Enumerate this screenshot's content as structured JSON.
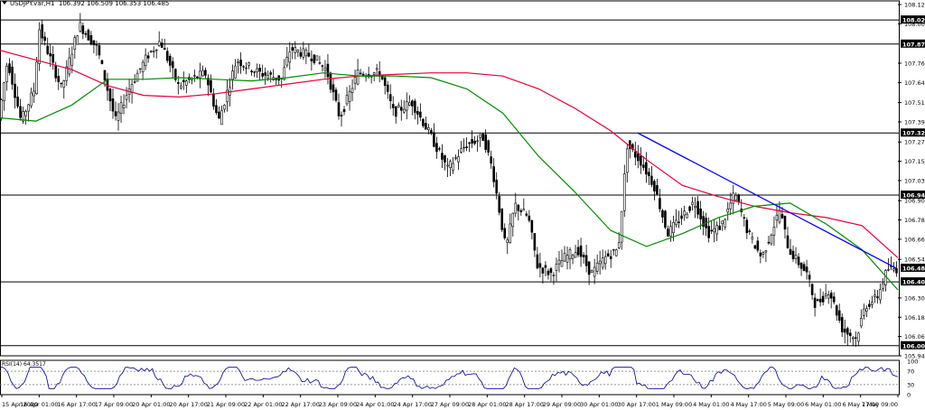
{
  "header": {
    "symbol": "USDJPY.var,H1",
    "ohlc": "106.392 106.509 106.353 106.485"
  },
  "rsi": {
    "label": "RSI(14) 64.3517",
    "levels": [
      100,
      70,
      30,
      0
    ],
    "level_lines": [
      70,
      30
    ]
  },
  "colors": {
    "candle": "#000000",
    "ma_slow": "#e8003a",
    "ma_fast": "#008c00",
    "trendline": "#0000ff",
    "hline": "#000000",
    "rsi_line": "#00008b",
    "label_box": "#000000",
    "label_text": "#ffffff"
  },
  "chart_data": {
    "type": "candlestick",
    "title": "USDJPY.var,H1",
    "ylim": [
      105.94,
      108.125
    ],
    "y_ticks": [
      108.125,
      108.005,
      107.76,
      107.64,
      107.515,
      107.395,
      107.27,
      107.15,
      107.03,
      106.905,
      106.785,
      106.665,
      106.54,
      106.3,
      106.18,
      106.06,
      105.94
    ],
    "x_ticks": [
      "15 Apr 2020",
      "16 Apr 01:00",
      "16 Apr 17:00",
      "17 Apr 09:00",
      "20 Apr 01:00",
      "20 Apr 17:00",
      "21 Apr 09:00",
      "22 Apr 01:00",
      "22 Apr 17:00",
      "23 Apr 09:00",
      "24 Apr 01:00",
      "24 Apr 17:00",
      "27 Apr 09:00",
      "28 Apr 01:00",
      "28 Apr 17:00",
      "29 Apr 09:00",
      "30 Apr 01:00",
      "30 Apr 17:00",
      "1 May 09:00",
      "4 May 01:00",
      "4 May 17:00",
      "5 May 09:00",
      "6 May 01:00",
      "6 May 17:00",
      "7 May 09:00"
    ],
    "horizontal_levels": [
      108.029,
      107.879,
      107.326,
      106.94,
      106.4,
      106.003
    ],
    "current_price": 106.485,
    "trendline": {
      "from": {
        "x": "30 Apr 17:00",
        "y": 107.326
      },
      "to": {
        "x": "7 May 09:00",
        "y": 106.485
      }
    },
    "series": [
      {
        "name": "",
        "type": "ma",
        "role": "slow",
        "values": [
          107.84,
          107.78,
          107.72,
          107.62,
          107.56,
          107.55,
          107.57,
          107.6,
          107.63,
          107.66,
          107.68,
          107.69,
          107.7,
          107.7,
          107.68,
          107.6,
          107.48,
          107.34,
          107.16,
          107.0,
          106.93,
          106.87,
          106.83,
          106.8,
          106.75,
          106.55
        ]
      },
      {
        "name": "",
        "type": "ma",
        "role": "fast",
        "values": [
          107.42,
          107.4,
          107.5,
          107.66,
          107.66,
          107.67,
          107.66,
          107.65,
          107.67,
          107.7,
          107.68,
          107.68,
          107.67,
          107.6,
          107.45,
          107.18,
          106.96,
          106.72,
          106.62,
          106.7,
          106.8,
          106.87,
          106.89,
          106.76,
          106.6,
          106.35
        ]
      }
    ]
  }
}
